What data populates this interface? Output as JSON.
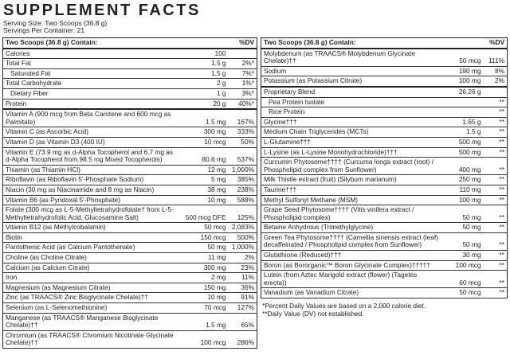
{
  "header": {
    "title": "SUPPLEMENT FACTS",
    "serving_size": "Serving Size: Two Scoops (36.8 g)",
    "servings_per_container": "Servings Per Container: 21"
  },
  "left": {
    "heading": "Two Scoops (36.8 g) Contain:",
    "dv_heading": "%DV",
    "rows": [
      {
        "name": "Calories",
        "amount": "100"
      },
      {
        "name": "Total Fat",
        "amount": "1.5 g",
        "dv": "2%*"
      },
      {
        "name": "Saturated Fat",
        "amount": "1.5 g",
        "dv": "7%*"
      },
      {
        "name": "Total Carbohydrate",
        "amount": "2 g",
        "dv": "1%*"
      },
      {
        "name": "Dietary Fiber",
        "amount": "1 g",
        "dv": "3%*"
      },
      {
        "name": "Protein",
        "amount": "20 g",
        "dv": "40%*"
      },
      {
        "name": "Vitamin A (900 mcg from Beta Carotene and 600 mcg as Palmitate)",
        "amount": "1.5 mg",
        "dv": "167%"
      },
      {
        "name": "Vitamin C (as Ascorbic Acid)",
        "amount": "300 mg",
        "dv": "333%"
      },
      {
        "name": "Vitamin D (as Vitamin D3 (400 IU)",
        "amount": "10 mcg",
        "dv": "50%"
      },
      {
        "name": "Vitamin E (73.9 mg as d-Alpha Tocopherol and 6.7 mg as d-Alpha Tocopherol from 98.5 mg Mixed Tocopherols)",
        "amount": "80.6 mg",
        "dv": "537%"
      },
      {
        "name": "Thiamin (as Thiamin HCl)",
        "amount": "12 mg",
        "dv": "1,000%"
      },
      {
        "name": "Riboflavin (as Riboflavin 5'-Phosphate Sodium)",
        "amount": "5 mg",
        "dv": "385%"
      },
      {
        "name": "Niacin (30 mg as Niacinamide and 8 mg as Niacin)",
        "amount": "38 mg",
        "dv": "238%"
      },
      {
        "name": "Vitamin B6 (as Pyridoxal 5'-Phosphate)",
        "amount": "10 mg",
        "dv": "588%"
      },
      {
        "name": "Folate (300 mcg as L-5-Methyltetrahydrofolate† from L-5-Methyltetrahydrofolic Acid, Glucosamine Salt)",
        "amount": "500 mcg DFE",
        "dv": "125%"
      },
      {
        "name": "Vitamin B12 (as Methylcobalamin)",
        "amount": "50 mcg",
        "dv": "2,083%"
      },
      {
        "name": "Biotin",
        "amount": "150 mcg",
        "dv": "500%"
      },
      {
        "name": "Pantothenic Acid (as Calcium Pantothenate)",
        "amount": "50 mg",
        "dv": "1,000%"
      },
      {
        "name": "Choline (as Choline Citrate)",
        "amount": "11 mg",
        "dv": "2%"
      },
      {
        "name": "Calcium (as Calcium Citrate)",
        "amount": "300 mg",
        "dv": "23%"
      },
      {
        "name": "Iron",
        "amount": "2 mg",
        "dv": "11%"
      },
      {
        "name": "Magnesium (as Magnesium Citrate)",
        "amount": "150 mg",
        "dv": "36%"
      },
      {
        "name": "Zinc (as TRAACS® Zinc Bisglycinate Chelate)††",
        "amount": "10 mg",
        "dv": "91%"
      },
      {
        "name": "Selenium (as L-Selenomethionine)",
        "amount": "70 mcg",
        "dv": "127%"
      },
      {
        "name": "Manganese (as TRAACS® Manganese Bisglycinate Chelate)††",
        "amount": "1.5 mg",
        "dv": "65%"
      },
      {
        "name": "Chromium (as TRAACS® Chromium Nicotinate Glycinate Chelate)††",
        "amount": "100 mcg",
        "dv": "286%"
      }
    ]
  },
  "right": {
    "heading": "Two Scoops (36.8 g) Contain:",
    "dv_heading": "%DV",
    "rows": [
      {
        "name": "Molybdenum (as TRAACS® Molybdenum Glycinate Chelate)††",
        "amount": "50 mcg",
        "dv": "111%"
      },
      {
        "name": "Sodium",
        "amount": "190 mg",
        "dv": "8%"
      },
      {
        "name": "Potassium (as Potassium Citrate)",
        "amount": "100 mg",
        "dv": "2%"
      },
      {
        "name": "Proprietary Blend",
        "amount": "26.26 g"
      },
      {
        "name": "Pea Protein Isolate",
        "dv": "**"
      },
      {
        "name": "Rice Protein",
        "dv": "**"
      },
      {
        "name": "Glycine†††",
        "amount": "1.65 g",
        "dv": "**"
      },
      {
        "name": "Medium Chain Triglycerides (MCTs)",
        "amount": "1.5 g",
        "dv": "**"
      },
      {
        "name": "L-Glutamine†††",
        "amount": "500 mg",
        "dv": "**"
      },
      {
        "name": "L-Lysine (as L-Lysine Monohydrochloride)†††",
        "amount": "500 mg",
        "dv": "**"
      },
      {
        "name": "Curcumin Phytosome†††† (Curcuma longa extract (root) / Phospholipid complex from Sunflower)",
        "amount": "400 mg",
        "dv": "**"
      },
      {
        "name": "Milk Thistle extract (fruit) (Silybum marianum)",
        "amount": "250 mg",
        "dv": "**"
      },
      {
        "name": "Taurine†††",
        "amount": "110 mg",
        "dv": "**"
      },
      {
        "name": "Methyl Sulfonyl Methane (MSM)",
        "amount": "100 mg",
        "dv": "**"
      },
      {
        "name": "Grape Seed Phytosome†††† (Vitis vinifera extract / Phospholipid complex)",
        "amount": "50 mg",
        "dv": "**"
      },
      {
        "name": "Betaine Anhydrous (Trimethylglycine)",
        "amount": "50 mg",
        "dv": "**"
      },
      {
        "name": "Green Tea Phytosome†††† (Camellia sinensis extract (leaf) decaffeinated / Phospholipid complex from Sunflower)",
        "amount": "50 mg",
        "dv": "**"
      },
      {
        "name": "Glutathione (Reduced)†††",
        "amount": "30 mg",
        "dv": "**"
      },
      {
        "name": "Boron (as Bororganic™ Boron Glycinate Complex)†††††",
        "amount": "100 mcg",
        "dv": "**"
      },
      {
        "name": "Lutein (from Aztec Marigold extract (flower) (Tagetes erecta))",
        "amount": "60 mcg",
        "dv": "**"
      },
      {
        "name": "Vanadium (as Vanadium Citrate)",
        "amount": "50 mcg",
        "dv": "**"
      }
    ],
    "footnotes": [
      "*Percent Daily Values are based on a 2,000 calorie diet.",
      "**Daily Value (DV) not established."
    ]
  }
}
